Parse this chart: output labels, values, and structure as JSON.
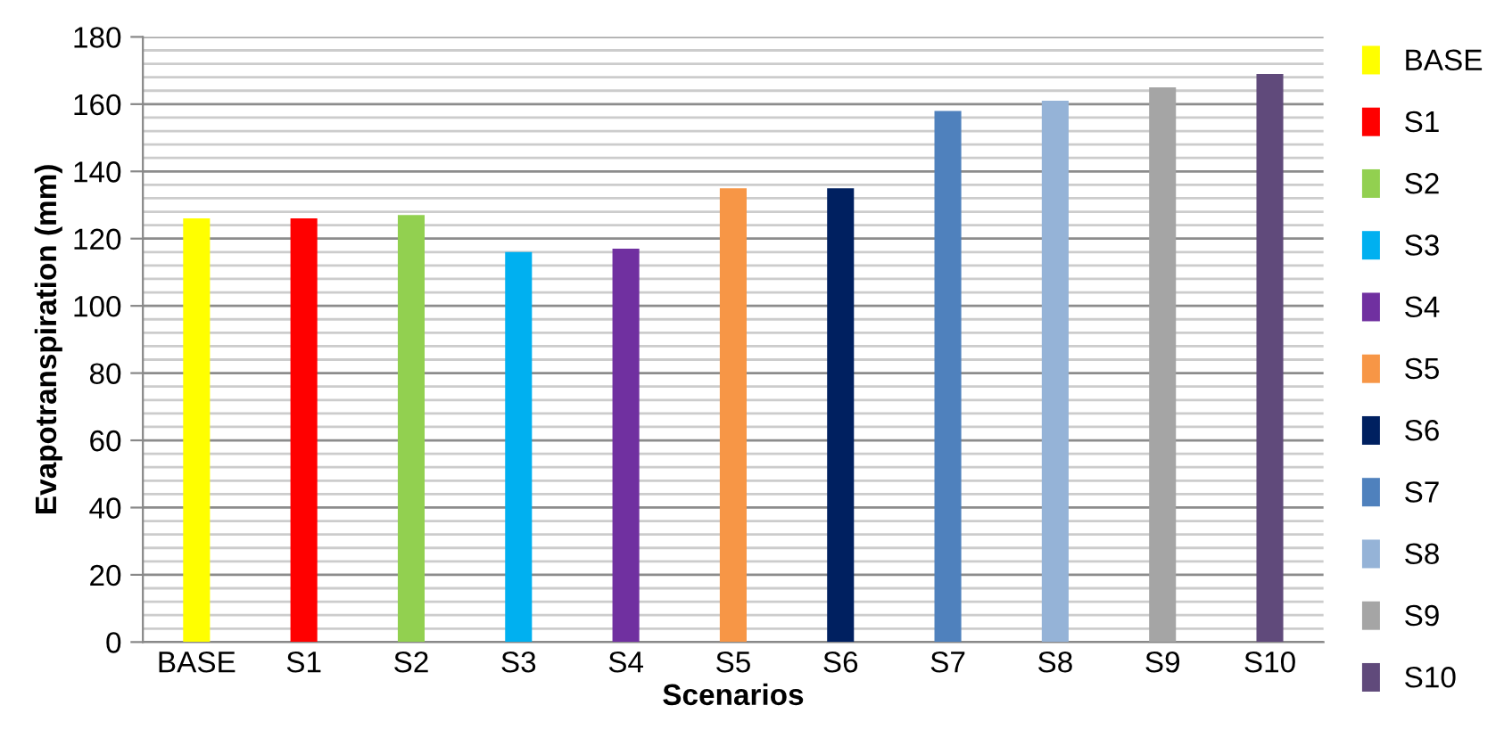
{
  "chart_data": {
    "type": "bar",
    "xlabel": "Scenarios",
    "ylabel": "Evapotranspiration (mm)",
    "categories": [
      "BASE",
      "S1",
      "S2",
      "S3",
      "S4",
      "S5",
      "S6",
      "S7",
      "S8",
      "S9",
      "S10"
    ],
    "series": [
      {
        "name": "BASE",
        "color": "#ffff00",
        "values": [
          126,
          null,
          null,
          null,
          null,
          null,
          null,
          null,
          null,
          null,
          null
        ]
      },
      {
        "name": "S1",
        "color": "#ff0000",
        "values": [
          null,
          126,
          null,
          null,
          null,
          null,
          null,
          null,
          null,
          null,
          null
        ]
      },
      {
        "name": "S2",
        "color": "#92d050",
        "values": [
          null,
          null,
          127,
          null,
          null,
          null,
          null,
          null,
          null,
          null,
          null
        ]
      },
      {
        "name": "S3",
        "color": "#00b0f0",
        "values": [
          null,
          null,
          null,
          116,
          null,
          null,
          null,
          null,
          null,
          null,
          null
        ]
      },
      {
        "name": "S4",
        "color": "#7030a0",
        "values": [
          null,
          null,
          null,
          null,
          117,
          null,
          null,
          null,
          null,
          null,
          null
        ]
      },
      {
        "name": "S5",
        "color": "#f79646",
        "values": [
          null,
          null,
          null,
          null,
          null,
          135,
          null,
          null,
          null,
          null,
          null
        ]
      },
      {
        "name": "S6",
        "color": "#002060",
        "values": [
          null,
          null,
          null,
          null,
          null,
          null,
          135,
          null,
          null,
          null,
          null
        ]
      },
      {
        "name": "S7",
        "color": "#4f81bd",
        "values": [
          null,
          null,
          null,
          null,
          null,
          null,
          null,
          158,
          null,
          null,
          null
        ]
      },
      {
        "name": "S8",
        "color": "#95b3d7",
        "values": [
          null,
          null,
          null,
          null,
          null,
          null,
          null,
          null,
          161,
          null,
          null
        ]
      },
      {
        "name": "S9",
        "color": "#a5a5a5",
        "values": [
          null,
          null,
          null,
          null,
          null,
          null,
          null,
          null,
          null,
          165,
          null
        ]
      },
      {
        "name": "S10",
        "color": "#604a7b",
        "values": [
          null,
          null,
          null,
          null,
          null,
          null,
          null,
          null,
          null,
          null,
          169
        ]
      }
    ],
    "ylim": [
      0,
      180
    ],
    "yticks": [
      0,
      {
        "value": 4,
        "label": null
      },
      {
        "value": 8,
        "label": null
      },
      {
        "value": 12,
        "label": null
      },
      {
        "value": 16,
        "label": null
      },
      20,
      {
        "value": 24,
        "label": null
      },
      {
        "value": 28,
        "label": null
      },
      {
        "value": 32,
        "label": null
      },
      {
        "value": 36,
        "label": null
      },
      40,
      {
        "value": 44,
        "label": null
      },
      {
        "value": 48,
        "label": null
      },
      {
        "value": 52,
        "label": null
      },
      {
        "value": 56,
        "label": null
      },
      60,
      {
        "value": 64,
        "label": null
      },
      {
        "value": 68,
        "label": null
      },
      {
        "value": 72,
        "label": null
      },
      {
        "value": 76,
        "label": null
      },
      80,
      {
        "value": 84,
        "label": null
      },
      {
        "value": 88,
        "label": null
      },
      {
        "value": 92,
        "label": null
      },
      {
        "value": 96,
        "label": null
      },
      100,
      {
        "value": 104,
        "label": null
      },
      {
        "value": 108,
        "label": null
      },
      {
        "value": 112,
        "label": null
      },
      {
        "value": 116,
        "label": null
      },
      120,
      {
        "value": 124,
        "label": null
      },
      {
        "value": 128,
        "label": null
      },
      {
        "value": 132,
        "label": null
      },
      {
        "value": 136,
        "label": null
      },
      140,
      {
        "value": 144,
        "label": null
      },
      {
        "value": 148,
        "label": null
      },
      {
        "value": 152,
        "label": null
      },
      {
        "value": 156,
        "label": null
      },
      160,
      {
        "value": 164,
        "label": null
      },
      {
        "value": 168,
        "label": null
      },
      {
        "value": 172,
        "label": null
      },
      {
        "value": 176,
        "label": null
      },
      180
    ],
    "grid": "y",
    "legend": "right"
  }
}
